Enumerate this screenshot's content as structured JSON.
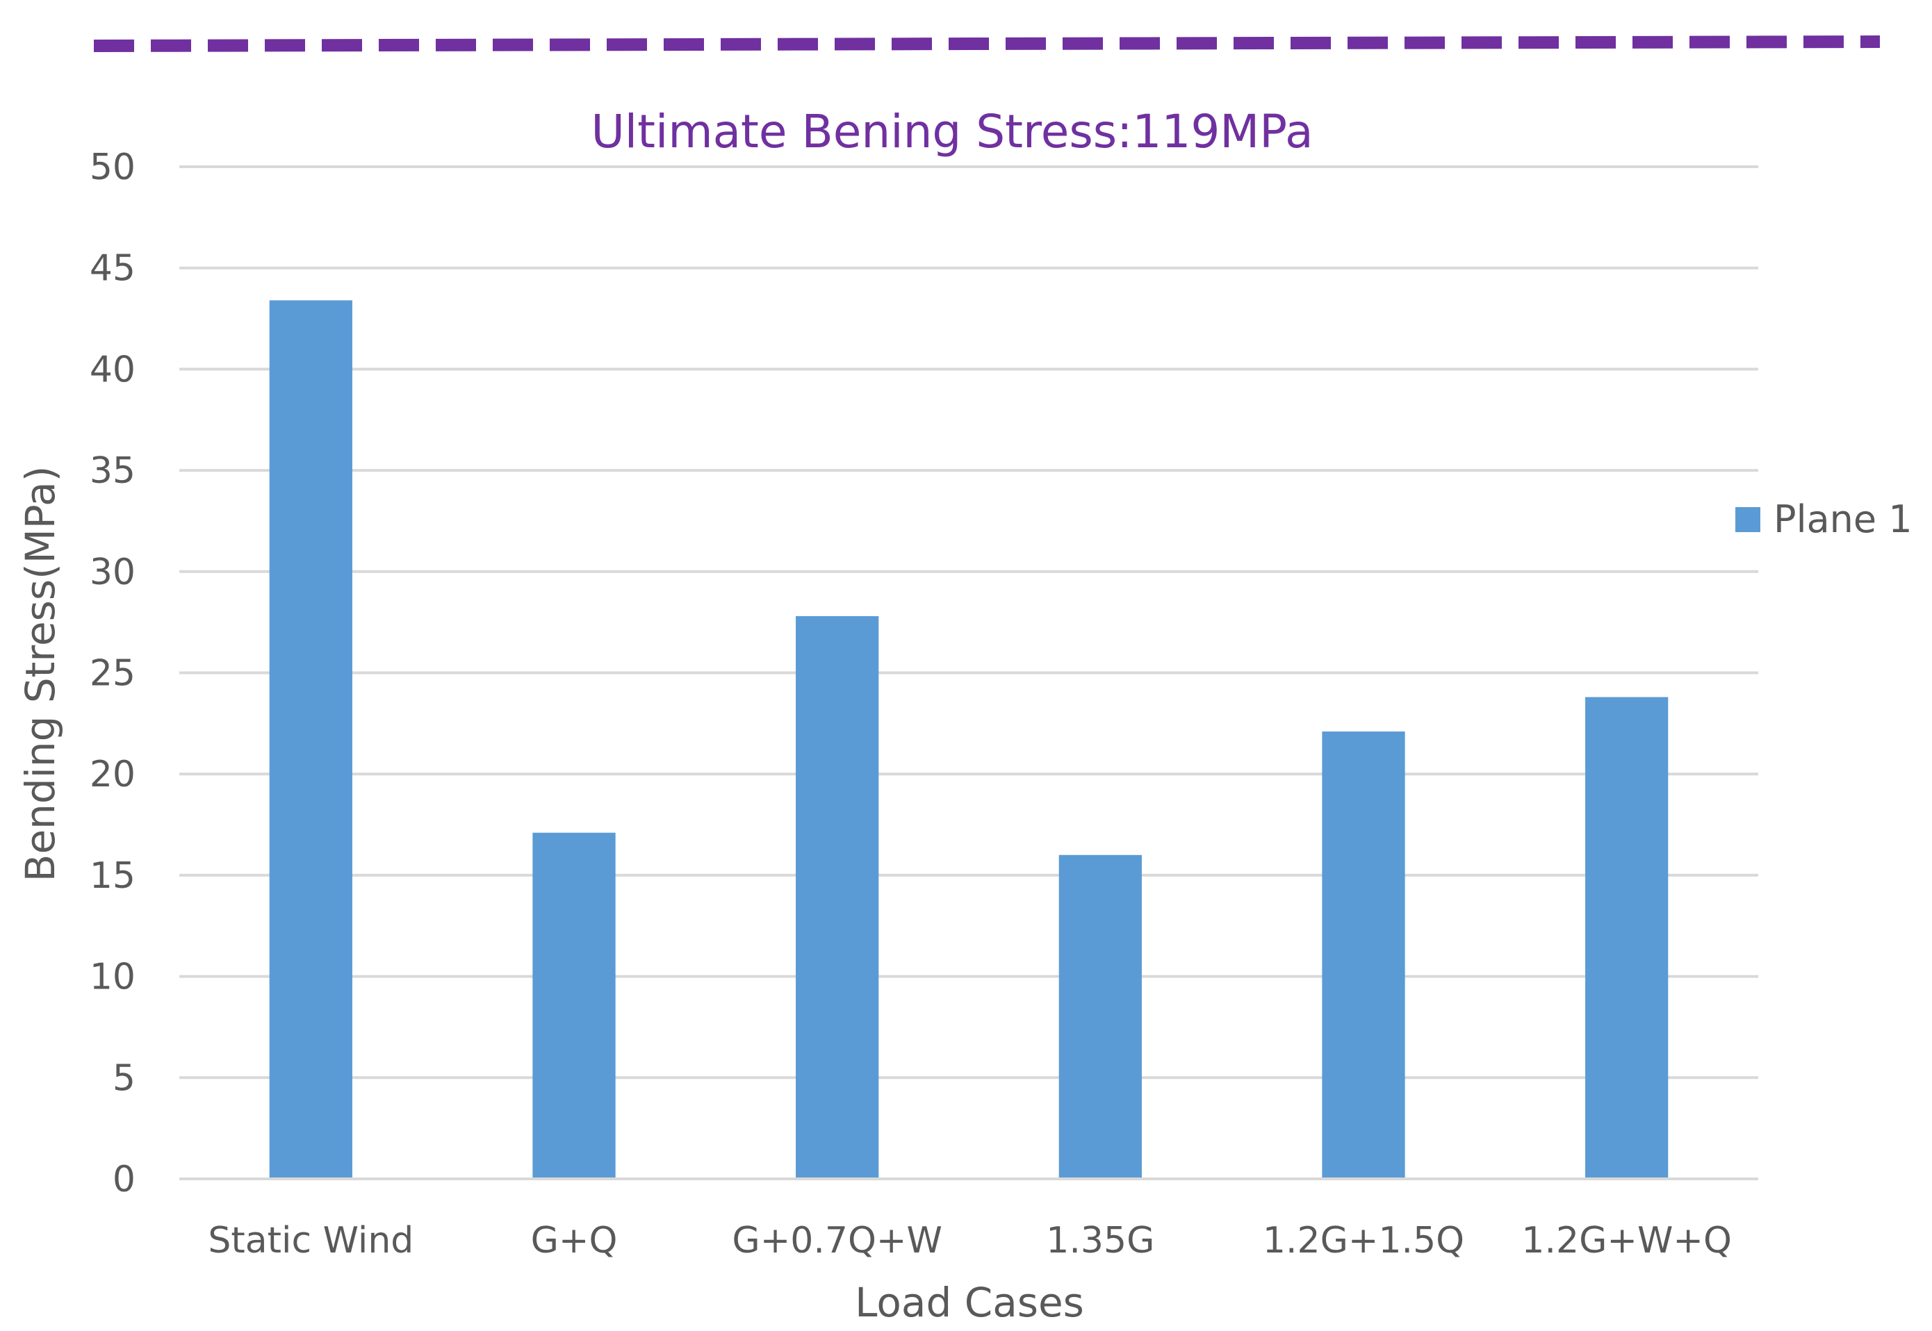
{
  "chart_data": {
    "type": "bar",
    "title": "",
    "xlabel": "Load Cases",
    "ylabel": "Bending Stress(MPa)",
    "ylim": [
      0,
      50
    ],
    "yticks": [
      0,
      5,
      10,
      15,
      20,
      25,
      30,
      35,
      40,
      45,
      50
    ],
    "grid": true,
    "legend_position": "right",
    "categories": [
      "Static Wind",
      "G+Q",
      "G+0.7Q+W",
      "1.35G",
      "1.2G+1.5Q",
      "1.2G+W+Q"
    ],
    "series": [
      {
        "name": "Plane 1",
        "values": [
          43.4,
          17.1,
          27.8,
          16.0,
          22.1,
          23.8
        ],
        "color": "#5b9bd5"
      }
    ],
    "reference_line": {
      "label": "Ultimate Bening Stress:119MPa",
      "color": "#7030a0",
      "style": "dashed"
    }
  }
}
